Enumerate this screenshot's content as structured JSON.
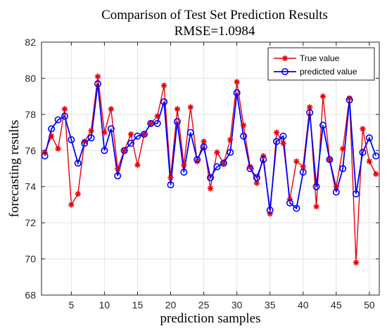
{
  "chart_data": {
    "type": "line",
    "title": "Comparison of Test Set Prediction Results",
    "subtitle": "RMSE=1.0984",
    "xlabel": "prediction samples",
    "ylabel": "forecasting results",
    "xlim": [
      0.5,
      51.5
    ],
    "ylim": [
      68,
      82
    ],
    "xticks": [
      5,
      10,
      15,
      20,
      25,
      30,
      35,
      40,
      45,
      50
    ],
    "yticks": [
      68,
      70,
      72,
      74,
      76,
      78,
      80,
      82
    ],
    "grid": true,
    "legend_position": "top-right",
    "x": [
      1,
      2,
      3,
      4,
      5,
      6,
      7,
      8,
      9,
      10,
      11,
      12,
      13,
      14,
      15,
      16,
      17,
      18,
      19,
      20,
      21,
      22,
      23,
      24,
      25,
      26,
      27,
      28,
      29,
      30,
      31,
      32,
      33,
      34,
      35,
      36,
      37,
      38,
      39,
      40,
      41,
      42,
      43,
      44,
      45,
      46,
      47,
      48,
      49,
      50,
      51
    ],
    "series": [
      {
        "name": "True value",
        "color": "#e8000b",
        "marker": "asterisk",
        "values": [
          75.9,
          76.8,
          76.1,
          78.3,
          73.0,
          73.6,
          76.5,
          77.1,
          80.1,
          77.0,
          78.3,
          75.0,
          76.0,
          76.9,
          75.2,
          76.9,
          77.5,
          77.9,
          79.6,
          74.5,
          78.3,
          75.2,
          78.4,
          75.4,
          76.5,
          73.9,
          75.9,
          75.3,
          76.6,
          79.8,
          77.4,
          75.1,
          74.2,
          75.7,
          72.5,
          77.0,
          76.4,
          73.3,
          75.4,
          75.1,
          78.4,
          72.9,
          79.0,
          75.5,
          74.0,
          76.1,
          78.9,
          69.8,
          77.2,
          75.4,
          74.7
        ]
      },
      {
        "name": "predicted value",
        "color": "#0000ff",
        "marker": "circle",
        "values": [
          75.7,
          77.2,
          77.7,
          77.9,
          76.6,
          75.3,
          76.4,
          76.7,
          79.7,
          76.0,
          77.2,
          74.6,
          76.0,
          76.4,
          76.8,
          76.9,
          77.5,
          77.5,
          78.7,
          74.1,
          77.6,
          74.8,
          77.0,
          75.5,
          76.2,
          74.5,
          75.1,
          75.3,
          75.9,
          79.2,
          76.8,
          75.0,
          74.5,
          75.5,
          72.7,
          76.5,
          76.8,
          73.1,
          72.8,
          74.8,
          78.1,
          74.0,
          77.4,
          75.5,
          73.7,
          75.0,
          78.8,
          73.6,
          75.9,
          76.7,
          75.7
        ]
      }
    ]
  }
}
